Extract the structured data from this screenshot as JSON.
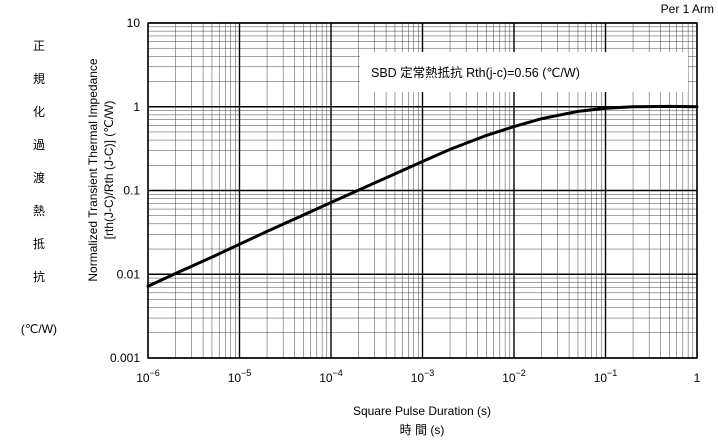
{
  "header_note": "Per 1 Arm",
  "side_label": {
    "chars": [
      "正",
      "規",
      "化",
      "過",
      "渡",
      "熱",
      "抵",
      "抗"
    ],
    "unit": "(℃/W)"
  },
  "annotation": "SBD  定常熱抵抗  Rth(j-c)=0.56 (℃/W)",
  "chart_data": {
    "type": "line",
    "title": "",
    "xlabel": "Square Pulse Duration (s)",
    "xlabel_jp": "時 間 (s)",
    "ylabel_line1": "Normalized Transient Thermal Impedance",
    "ylabel_line2": "[rth(J-C)/Rth (J-C)] (℃/W)",
    "x_scale": "log",
    "y_scale": "log",
    "xlim": [
      1e-06,
      1
    ],
    "ylim": [
      0.001,
      10
    ],
    "grid": true,
    "x_ticks": [
      {
        "value": 1e-06,
        "base": "10",
        "exp": "−6"
      },
      {
        "value": 1e-05,
        "base": "10",
        "exp": "−5"
      },
      {
        "value": 0.0001,
        "base": "10",
        "exp": "−4"
      },
      {
        "value": 0.001,
        "base": "10",
        "exp": "−3"
      },
      {
        "value": 0.01,
        "base": "10",
        "exp": "−2"
      },
      {
        "value": 0.1,
        "base": "10",
        "exp": "−1"
      },
      {
        "value": 1,
        "base": "1",
        "exp": ""
      }
    ],
    "y_ticks": [
      {
        "value": 0.001,
        "label": "0.001"
      },
      {
        "value": 0.01,
        "label": "0.01"
      },
      {
        "value": 0.1,
        "label": "0.1"
      },
      {
        "value": 1,
        "label": "1"
      },
      {
        "value": 10,
        "label": "10"
      }
    ],
    "series": [
      {
        "color": "#000000",
        "x": [
          1e-06,
          2e-06,
          5e-06,
          1e-05,
          2e-05,
          5e-05,
          0.0001,
          0.0002,
          0.0005,
          0.001,
          0.002,
          0.005,
          0.01,
          0.02,
          0.05,
          0.1,
          0.2,
          0.5,
          1
        ],
        "y": [
          0.0072,
          0.0102,
          0.016,
          0.0228,
          0.0325,
          0.051,
          0.072,
          0.101,
          0.158,
          0.222,
          0.31,
          0.455,
          0.58,
          0.72,
          0.88,
          0.96,
          1.0,
          1.01,
          1.0
        ]
      }
    ]
  }
}
